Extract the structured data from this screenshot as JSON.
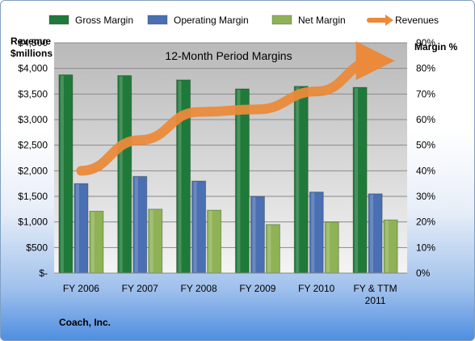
{
  "chart_data": {
    "type": "bar",
    "title": "12-Month Period Margins",
    "company": "Coach, Inc.",
    "categories": [
      "FY 2006",
      "FY 2007",
      "FY 2008",
      "FY 2009",
      "FY 2010",
      "FY & TTM 2011"
    ],
    "series": [
      {
        "name": "Gross Margin",
        "type": "bar",
        "axis": "right",
        "color": "#1f7a3a",
        "values": [
          77.5,
          77.2,
          75.5,
          72.0,
          73.0,
          72.6
        ]
      },
      {
        "name": "Operating Margin",
        "type": "bar",
        "axis": "right",
        "color": "#4a6fb3",
        "values": [
          35.0,
          37.8,
          36.0,
          30.0,
          31.7,
          31.0
        ]
      },
      {
        "name": "Net Margin",
        "type": "bar",
        "axis": "right",
        "color": "#8eb255",
        "values": [
          24.2,
          25.0,
          24.6,
          19.0,
          20.0,
          20.8
        ]
      },
      {
        "name": "Revenues",
        "type": "line",
        "axis": "left",
        "color": "#ea8a3a",
        "values": [
          2000,
          2600,
          3150,
          3200,
          3550,
          4150
        ]
      }
    ],
    "left_axis": {
      "label_line1": "Revenue",
      "label_line2": "$millions",
      "min": 0,
      "max": 4500,
      "step": 500,
      "ticks": [
        "$-",
        "$500",
        "$1,000",
        "$1,500",
        "$2,000",
        "$2,500",
        "$3,000",
        "$3,500",
        "$4,000",
        "$4,500"
      ]
    },
    "right_axis": {
      "label": "Margin %",
      "min": 0,
      "max": 90,
      "step": 10,
      "ticks": [
        "0%",
        "10%",
        "20%",
        "30%",
        "40%",
        "50%",
        "60%",
        "70%",
        "80%",
        "90%"
      ]
    },
    "grid": true,
    "legend_position": "top"
  }
}
